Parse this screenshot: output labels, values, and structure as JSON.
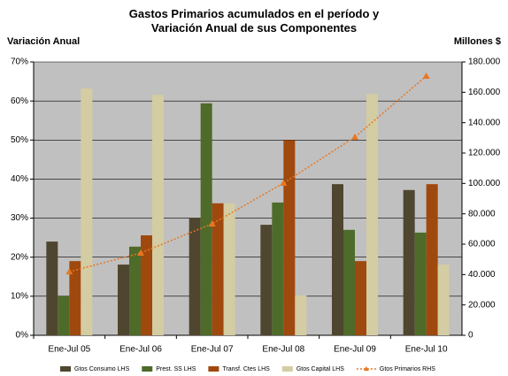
{
  "chart_data": {
    "type": "bar_line",
    "title": "Gastos Primarios  acumulados en el período y Variación Anual de sus Componentes",
    "y_label": "Variación Anual",
    "y2_label": "Millones $",
    "categories": [
      "Ene-Jul 05",
      "Ene-Jul 06",
      "Ene-Jul 07",
      "Ene-Jul 08",
      "Ene-Jul 09",
      "Ene-Jul 10"
    ],
    "series": [
      {
        "name": "Gtos Consumo  LHS",
        "color": "#4f4630",
        "values": [
          24.0,
          18.1,
          30.1,
          28.3,
          38.7,
          37.2
        ]
      },
      {
        "name": "Prest. SS LHS",
        "color": "#4e6b2a",
        "values": [
          10.0,
          22.7,
          59.4,
          34.0,
          27.0,
          26.3
        ]
      },
      {
        "name": "Transf. Ctes LHS",
        "color": "#a0490e",
        "values": [
          19.0,
          25.6,
          33.8,
          50.0,
          19.0,
          38.7
        ]
      },
      {
        "name": "Gtos Capital LHS",
        "color": "#d4cca2",
        "values": [
          63.2,
          61.6,
          33.8,
          10.2,
          61.8,
          18.1
        ]
      },
      {
        "name": "Gtos Primarios RHS",
        "color": "#e87722",
        "axis": "y2",
        "type": "line",
        "values": [
          41900,
          54200,
          73400,
          100200,
          130500,
          170700
        ]
      }
    ],
    "ylim": [
      0,
      70
    ],
    "yticks": [
      {
        "value": 0,
        "label": "0%"
      },
      {
        "value": 10,
        "label": "10%"
      },
      {
        "value": 20,
        "label": "20%"
      },
      {
        "value": 30,
        "label": "30%"
      },
      {
        "value": 40,
        "label": "40%"
      },
      {
        "value": 50,
        "label": "50%"
      },
      {
        "value": 60,
        "label": "60%"
      },
      {
        "value": 70,
        "label": "70%"
      }
    ],
    "y2lim": [
      0,
      180000
    ],
    "y2ticks": [
      0,
      {
        "value": 20000,
        "label": "20.000"
      },
      {
        "value": 40000,
        "label": "40.000"
      },
      {
        "value": 60000,
        "label": "60.000"
      },
      {
        "value": 80000,
        "label": "80.000"
      },
      {
        "value": 100000,
        "label": "100.000"
      },
      {
        "value": 120000,
        "label": "120.000"
      },
      {
        "value": 140000,
        "label": "140.000"
      },
      {
        "value": 160000,
        "label": "160.000"
      },
      {
        "value": 180000,
        "label": "180.000"
      }
    ],
    "grid": true,
    "plot_background": "#c0c0c0",
    "legend": "bottom"
  }
}
